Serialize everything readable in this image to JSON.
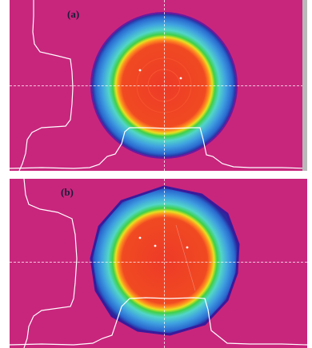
{
  "figure": {
    "panels": [
      {
        "label": "(a)"
      },
      {
        "label": "(b)"
      }
    ],
    "colors": {
      "background": "#c8267d",
      "beam_outer": "#2a2a9c",
      "beam_blue": "#3fa0e0",
      "beam_cyan": "#52d6c8",
      "beam_green": "#3fd048",
      "beam_yellow": "#e8e020",
      "beam_orange": "#ff7a20",
      "beam_core": "#ee3a28",
      "profile_line": "#ffffff"
    }
  }
}
